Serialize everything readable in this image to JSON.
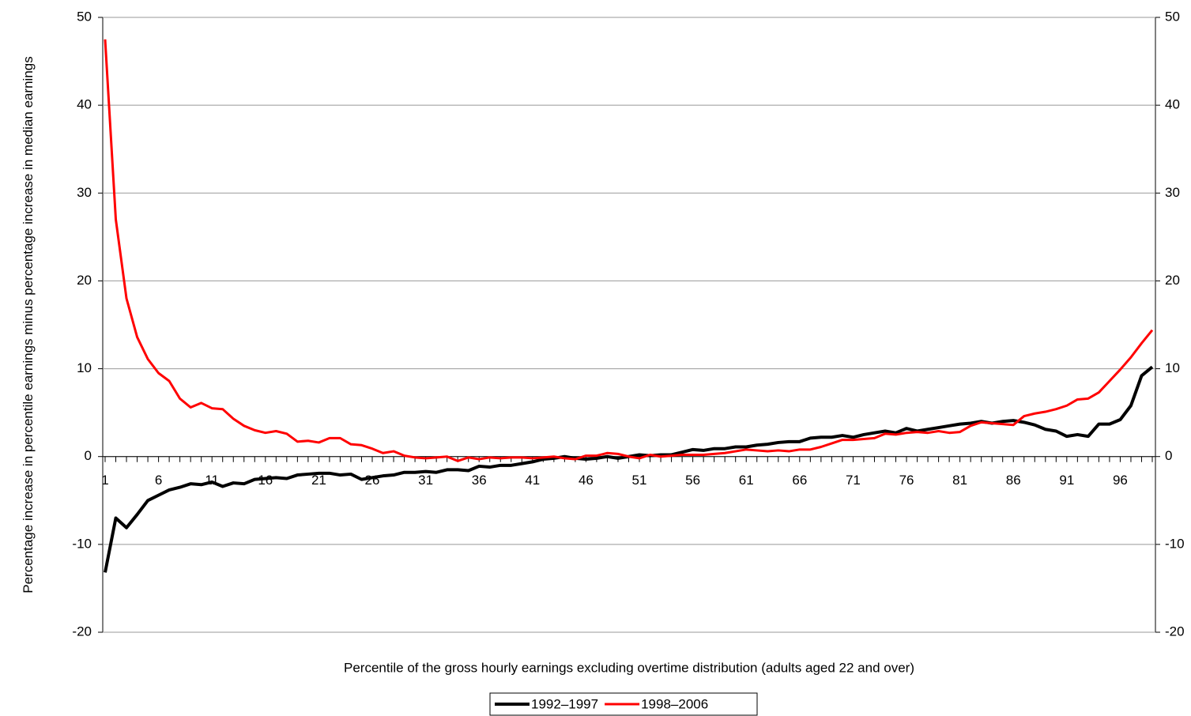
{
  "chart_data": {
    "type": "line",
    "x_label": "Percentile of the gross hourly earnings excluding overtime distribution (adults aged 22 and over)",
    "y_label": "Percentage increase in percentile earnings minus percentage increase in median earnings",
    "x": [
      1,
      2,
      3,
      4,
      5,
      6,
      7,
      8,
      9,
      10,
      11,
      12,
      13,
      14,
      15,
      16,
      17,
      18,
      19,
      20,
      21,
      22,
      23,
      24,
      25,
      26,
      27,
      28,
      29,
      30,
      31,
      32,
      33,
      34,
      35,
      36,
      37,
      38,
      39,
      40,
      41,
      42,
      43,
      44,
      45,
      46,
      47,
      48,
      49,
      50,
      51,
      52,
      53,
      54,
      55,
      56,
      57,
      58,
      59,
      60,
      61,
      62,
      63,
      64,
      65,
      66,
      67,
      68,
      69,
      70,
      71,
      72,
      73,
      74,
      75,
      76,
      77,
      78,
      79,
      80,
      81,
      82,
      83,
      84,
      85,
      86,
      87,
      88,
      89,
      90,
      91,
      92,
      93,
      94,
      95,
      96,
      97,
      98,
      99
    ],
    "xlim": [
      1,
      99
    ],
    "xticks": [
      1,
      6,
      11,
      16,
      21,
      26,
      31,
      36,
      41,
      46,
      51,
      56,
      61,
      66,
      71,
      76,
      81,
      86,
      91,
      96
    ],
    "ylim": [
      -20,
      50
    ],
    "yticks": [
      -20,
      -10,
      0,
      10,
      20,
      30,
      40,
      50
    ],
    "y2lim": [
      -20,
      50
    ],
    "y2ticks": [
      -20,
      -10,
      0,
      10,
      20,
      30,
      40,
      50
    ],
    "grid": true,
    "series": [
      {
        "name": "1992–1997",
        "color": "#000000",
        "values": [
          -13.2,
          -7,
          -8.1,
          -6.6,
          -5,
          -4.4,
          -3.8,
          -3.5,
          -3.1,
          -3.2,
          -2.9,
          -3.4,
          -3,
          -3.1,
          -2.6,
          -2.5,
          -2.4,
          -2.5,
          -2.1,
          -2,
          -1.9,
          -1.9,
          -2.1,
          -2,
          -2.6,
          -2.4,
          -2.2,
          -2.1,
          -1.8,
          -1.8,
          -1.7,
          -1.8,
          -1.5,
          -1.5,
          -1.6,
          -1.1,
          -1.2,
          -1,
          -1,
          -0.8,
          -0.6,
          -0.3,
          -0.2,
          0,
          -0.2,
          -0.3,
          -0.2,
          0,
          -0.2,
          0,
          0.2,
          0.1,
          0.2,
          0.2,
          0.5,
          0.8,
          0.7,
          0.9,
          0.9,
          1.1,
          1.1,
          1.3,
          1.4,
          1.6,
          1.7,
          1.7,
          2.1,
          2.2,
          2.2,
          2.4,
          2.2,
          2.5,
          2.7,
          2.9,
          2.7,
          3.2,
          2.9,
          3.1,
          3.3,
          3.5,
          3.7,
          3.8,
          4,
          3.8,
          4,
          4.1,
          3.9,
          3.6,
          3.1,
          2.9,
          2.3,
          2.5,
          2.3,
          3.7,
          3.7,
          4.2,
          5.8,
          9.2,
          10.2
        ]
      },
      {
        "name": "1998–2006",
        "color": "#ff0000",
        "values": [
          47.5,
          27,
          18,
          13.6,
          11.1,
          9.5,
          8.6,
          6.6,
          5.6,
          6.1,
          5.5,
          5.4,
          4.3,
          3.5,
          3,
          2.7,
          2.9,
          2.6,
          1.7,
          1.8,
          1.6,
          2.1,
          2.1,
          1.4,
          1.3,
          0.9,
          0.4,
          0.6,
          0.1,
          -0.1,
          -0.2,
          -0.1,
          0,
          -0.5,
          -0.1,
          -0.3,
          -0.1,
          -0.2,
          -0.1,
          -0.1,
          -0.2,
          -0.1,
          0,
          -0.2,
          -0.3,
          0.1,
          0.1,
          0.4,
          0.3,
          0,
          -0.2,
          0.2,
          0,
          0.1,
          0.2,
          0.2,
          0.2,
          0.3,
          0.4,
          0.6,
          0.8,
          0.7,
          0.6,
          0.7,
          0.6,
          0.8,
          0.8,
          1.1,
          1.5,
          1.9,
          1.9,
          2,
          2.1,
          2.6,
          2.5,
          2.7,
          2.8,
          2.7,
          2.9,
          2.7,
          2.8,
          3.5,
          3.9,
          3.8,
          3.7,
          3.6,
          4.6,
          4.9,
          5.1,
          5.4,
          5.8,
          6.5,
          6.6,
          7.3,
          8.6,
          9.9,
          11.3,
          12.9,
          14.4
        ]
      }
    ]
  }
}
